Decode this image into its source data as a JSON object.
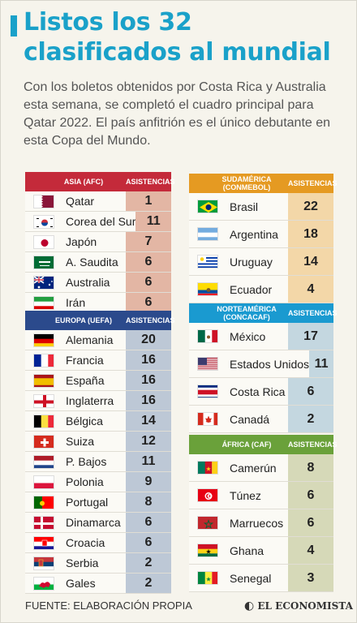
{
  "title": "Listos los 32 clasificados al mundial",
  "intro": "Con los boletos obtenidos por Costa Rica y Australia esta semana, se completó el cuadro principal para Qatar 2022. El país anfitrión es el único debutante en esta Copa del Mundo.",
  "column_label": "ASISTENCIAS",
  "colors": {
    "accent": "#1aa1c9",
    "afc": "#c42a3a",
    "uefa": "#2b4a8c",
    "conmebol": "#e59a22",
    "concacaf": "#1a9ad0",
    "caf": "#6aa13a"
  },
  "groups": [
    {
      "id": "afc",
      "title": "ASIA (AFC)",
      "header_color": "#c42a3a",
      "val_color": "#e3b6a4",
      "teams": [
        {
          "name": "Qatar",
          "value": "1",
          "flag": "qatar"
        },
        {
          "name": "Corea del Sur",
          "value": "11",
          "flag": "korea"
        },
        {
          "name": "Japón",
          "value": "7",
          "flag": "japan"
        },
        {
          "name": "A. Saudita",
          "value": "6",
          "flag": "saudi"
        },
        {
          "name": "Australia",
          "value": "6",
          "flag": "australia"
        },
        {
          "name": "Irán",
          "value": "6",
          "flag": "iran"
        }
      ]
    },
    {
      "id": "uefa",
      "title": "EUROPA (UEFA)",
      "header_color": "#2b4a8c",
      "val_color": "#bdc8d6",
      "teams": [
        {
          "name": "Alemania",
          "value": "20",
          "flag": "germany"
        },
        {
          "name": "Francia",
          "value": "16",
          "flag": "france"
        },
        {
          "name": "España",
          "value": "16",
          "flag": "spain"
        },
        {
          "name": "Inglaterra",
          "value": "16",
          "flag": "england"
        },
        {
          "name": "Bélgica",
          "value": "14",
          "flag": "belgium"
        },
        {
          "name": "Suiza",
          "value": "12",
          "flag": "switzerland"
        },
        {
          "name": "P. Bajos",
          "value": "11",
          "flag": "netherlands"
        },
        {
          "name": "Polonia",
          "value": "9",
          "flag": "poland"
        },
        {
          "name": "Portugal",
          "value": "8",
          "flag": "portugal"
        },
        {
          "name": "Dinamarca",
          "value": "6",
          "flag": "denmark"
        },
        {
          "name": "Croacia",
          "value": "6",
          "flag": "croatia"
        },
        {
          "name": "Serbia",
          "value": "2",
          "flag": "serbia"
        },
        {
          "name": "Gales",
          "value": "2",
          "flag": "wales"
        }
      ]
    },
    {
      "id": "conmebol",
      "title": "SUDAMÉRICA (CONMEBOL)",
      "header_color": "#e59a22",
      "val_color": "#f3d7a8",
      "teams": [
        {
          "name": "Brasil",
          "value": "22",
          "flag": "brazil"
        },
        {
          "name": "Argentina",
          "value": "18",
          "flag": "argentina"
        },
        {
          "name": "Uruguay",
          "value": "14",
          "flag": "uruguay"
        },
        {
          "name": "Ecuador",
          "value": "4",
          "flag": "ecuador"
        }
      ]
    },
    {
      "id": "concacaf",
      "title": "NORTEAMÉRICA (CONCACAF)",
      "header_color": "#1a9ad0",
      "val_color": "#c4d7e0",
      "teams": [
        {
          "name": "México",
          "value": "17",
          "flag": "mexico"
        },
        {
          "name": "Estados Unidos",
          "value": "11",
          "flag": "usa"
        },
        {
          "name": "Costa Rica",
          "value": "6",
          "flag": "costarica"
        },
        {
          "name": "Canadá",
          "value": "2",
          "flag": "canada"
        }
      ]
    },
    {
      "id": "caf",
      "title": "ÁFRICA (CAF)",
      "header_color": "#6aa13a",
      "val_color": "#d6d9b8",
      "teams": [
        {
          "name": "Camerún",
          "value": "8",
          "flag": "cameroon"
        },
        {
          "name": "Túnez",
          "value": "6",
          "flag": "tunisia"
        },
        {
          "name": "Marruecos",
          "value": "6",
          "flag": "morocco"
        },
        {
          "name": "Ghana",
          "value": "4",
          "flag": "ghana"
        },
        {
          "name": "Senegal",
          "value": "3",
          "flag": "senegal"
        }
      ]
    }
  ],
  "source": "FUENTE: ELABORACIÓN PROPIA",
  "logo": "EL ECONOMISTA"
}
